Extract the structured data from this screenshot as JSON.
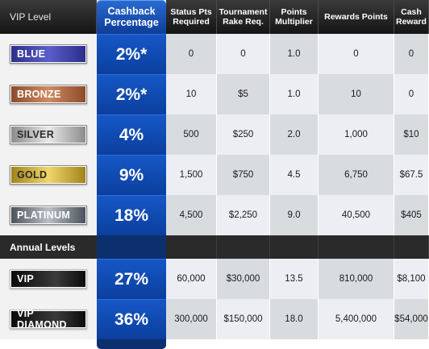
{
  "headers": {
    "vip_level": "VIP Level",
    "cashback": "Cashback Percentage",
    "status_pts": "Status Pts Required",
    "tournament_rake": "Tournament Rake Req.",
    "points_multiplier": "Points Multiplier",
    "rewards_points": "Rewards Points",
    "cash_reward": "Cash Reward"
  },
  "levels": [
    {
      "name": "BLUE",
      "cashback": "2%*",
      "status_pts": "0",
      "rake": "0",
      "multiplier": "1.0",
      "rewards": "0",
      "cash": "0"
    },
    {
      "name": "BRONZE",
      "cashback": "2%*",
      "status_pts": "10",
      "rake": "$5",
      "multiplier": "1.0",
      "rewards": "10",
      "cash": "0"
    },
    {
      "name": "SILVER",
      "cashback": "4%",
      "status_pts": "500",
      "rake": "$250",
      "multiplier": "2.0",
      "rewards": "1,000",
      "cash": "$10"
    },
    {
      "name": "GOLD",
      "cashback": "9%",
      "status_pts": "1,500",
      "rake": "$750",
      "multiplier": "4.5",
      "rewards": "6,750",
      "cash": "$67.5"
    },
    {
      "name": "PLATINUM",
      "cashback": "18%",
      "status_pts": "4,500",
      "rake": "$2,250",
      "multiplier": "9.0",
      "rewards": "40,500",
      "cash": "$405"
    }
  ],
  "annual_section_label": "Annual Levels",
  "annual_levels": [
    {
      "name": "VIP",
      "cashback": "27%",
      "status_pts": "60,000",
      "rake": "$30,000",
      "multiplier": "13.5",
      "rewards": "810,000",
      "cash": "$8,100"
    },
    {
      "name": "VIP DIAMOND",
      "cashback": "36%",
      "status_pts": "300,000",
      "rake": "$150,000",
      "multiplier": "18.0",
      "rewards": "5,400,000",
      "cash": "$54,000"
    }
  ]
}
